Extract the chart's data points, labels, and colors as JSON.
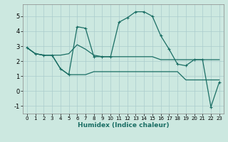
{
  "xlabel": "Humidex (Indice chaleur)",
  "bg_color": "#cce8e0",
  "grid_color": "#aacccc",
  "line_color": "#1a6e64",
  "xlim": [
    -0.5,
    23.5
  ],
  "ylim": [
    -1.5,
    5.8
  ],
  "yticks": [
    -1,
    0,
    1,
    2,
    3,
    4,
    5
  ],
  "xticks": [
    0,
    1,
    2,
    3,
    4,
    5,
    6,
    7,
    8,
    9,
    10,
    11,
    12,
    13,
    14,
    15,
    16,
    17,
    18,
    19,
    20,
    21,
    22,
    23
  ],
  "series": [
    {
      "x": [
        0,
        1,
        2,
        3,
        4,
        5,
        6,
        7,
        8,
        9,
        10,
        11,
        12,
        13,
        14,
        15,
        16,
        17,
        18,
        19,
        20,
        21,
        22,
        23
      ],
      "y": [
        2.9,
        2.5,
        2.4,
        2.4,
        2.4,
        2.5,
        3.1,
        2.8,
        2.4,
        2.3,
        2.3,
        2.3,
        2.3,
        2.3,
        2.3,
        2.3,
        2.1,
        2.1,
        2.1,
        2.1,
        2.1,
        2.1,
        2.1,
        2.1
      ],
      "marker": false
    },
    {
      "x": [
        0,
        1,
        2,
        3,
        4,
        5,
        6,
        7,
        8,
        9,
        10,
        11,
        12,
        13,
        14,
        15,
        16,
        17,
        18,
        19,
        20,
        21,
        22,
        23
      ],
      "y": [
        2.9,
        2.5,
        2.4,
        2.4,
        1.5,
        1.1,
        1.1,
        1.1,
        1.3,
        1.3,
        1.3,
        1.3,
        1.3,
        1.3,
        1.3,
        1.3,
        1.3,
        1.3,
        1.3,
        0.75,
        0.75,
        0.75,
        0.75,
        0.75
      ],
      "marker": false
    },
    {
      "x": [
        0,
        1,
        2,
        3,
        4,
        5,
        6,
        7,
        8,
        9,
        10,
        11,
        12,
        13,
        14,
        15,
        16,
        17,
        18,
        19,
        20,
        21,
        22,
        23
      ],
      "y": [
        2.9,
        2.5,
        2.4,
        2.4,
        1.5,
        1.1,
        4.3,
        4.2,
        2.3,
        2.3,
        2.3,
        4.6,
        4.9,
        5.3,
        5.3,
        5.0,
        3.7,
        2.8,
        1.8,
        1.7,
        2.1,
        2.1,
        -1.05,
        0.6
      ],
      "marker": true
    }
  ]
}
